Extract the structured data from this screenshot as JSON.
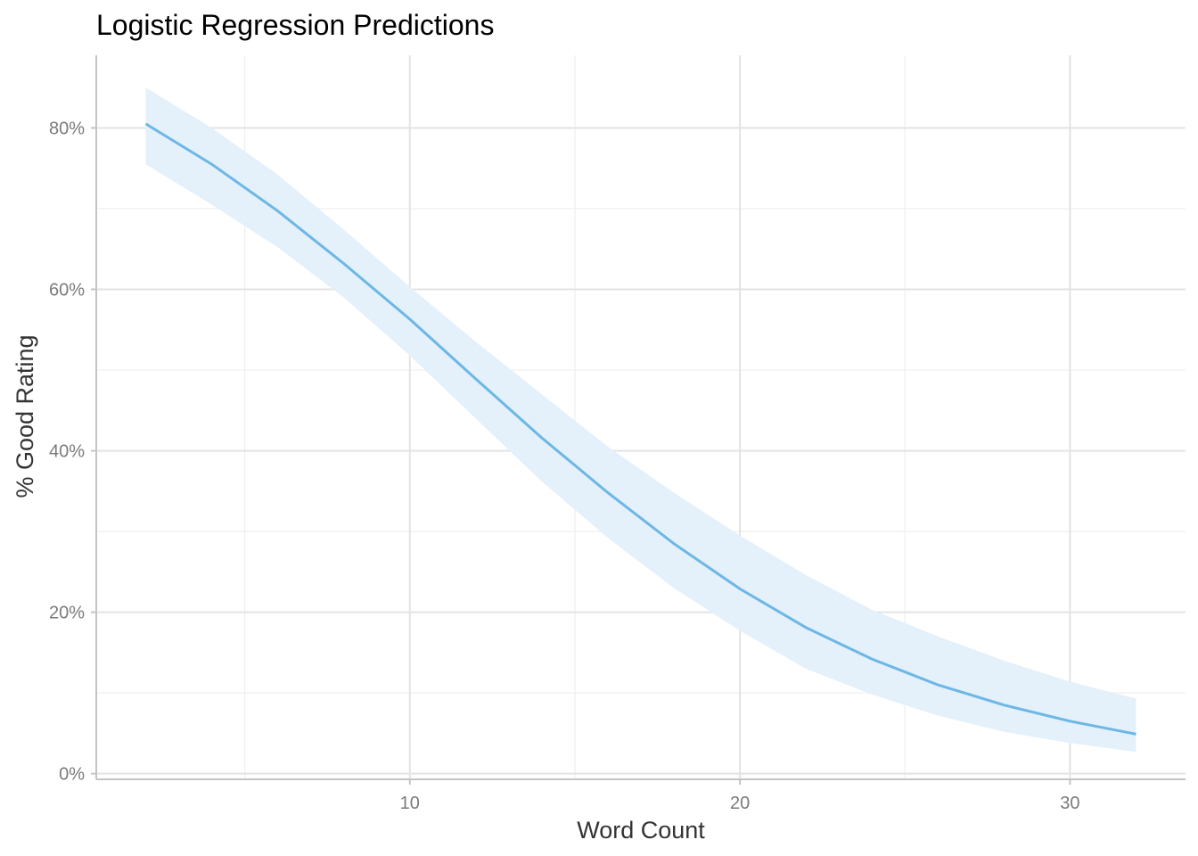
{
  "chart_data": {
    "type": "line",
    "title": "Logistic Regression Predictions",
    "xlabel": "Word Count",
    "ylabel": "% Good Rating",
    "xlim": [
      0.5,
      33.5
    ],
    "ylim": [
      -0.007,
      0.89
    ],
    "x_ticks": [
      10,
      20,
      30
    ],
    "x_tick_labels": [
      "10",
      "20",
      "30"
    ],
    "y_ticks": [
      0,
      0.2,
      0.4,
      0.6,
      0.8
    ],
    "y_tick_labels": [
      "0%",
      "20%",
      "40%",
      "60%",
      "80%"
    ],
    "grid": true,
    "legend": "none",
    "colors": {
      "line": "#6cb7e6",
      "band": "#e4f0fa"
    },
    "series": [
      {
        "x": [
          2,
          4,
          6,
          8,
          10,
          12,
          14,
          16,
          18,
          20,
          22,
          24,
          26,
          28,
          30,
          32
        ],
        "y": [
          0.805,
          0.755,
          0.697,
          0.632,
          0.563,
          0.489,
          0.416,
          0.348,
          0.285,
          0.229,
          0.181,
          0.142,
          0.11,
          0.085,
          0.065,
          0.049
        ],
        "lower": [
          0.755,
          0.705,
          0.652,
          0.59,
          0.518,
          0.44,
          0.362,
          0.292,
          0.23,
          0.177,
          0.13,
          0.098,
          0.072,
          0.052,
          0.038,
          0.027
        ],
        "upper": [
          0.85,
          0.8,
          0.742,
          0.674,
          0.603,
          0.535,
          0.47,
          0.405,
          0.348,
          0.295,
          0.246,
          0.203,
          0.17,
          0.14,
          0.114,
          0.093
        ]
      }
    ]
  }
}
